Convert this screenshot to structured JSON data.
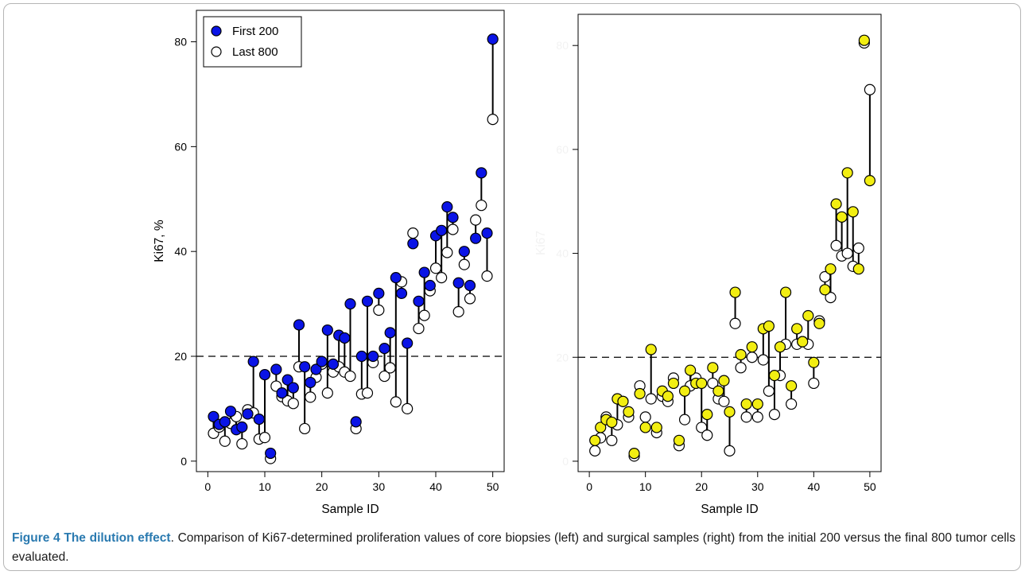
{
  "caption": {
    "figure_label": "Figure 4",
    "title": "The dilution effect",
    "text": ". Comparison of Ki67-determined proliferation values of core biopsies (left) and surgical samples (right) from the initial 200 versus the final 800 tumor cells evaluated."
  },
  "colors": {
    "first200_left": "#0a14e6",
    "first200_right": "#f2ee12",
    "last800": "#ffffff",
    "stroke": "#000000",
    "right_y_ticklabels": "#f2f2f2"
  },
  "chart_data": [
    {
      "type": "scatter",
      "title": "",
      "xlabel": "Sample ID",
      "ylabel": "Ki67, %",
      "xlim": [
        -2,
        52
      ],
      "ylim": [
        -2,
        86
      ],
      "xticks": [
        0,
        10,
        20,
        30,
        40,
        50
      ],
      "yticks": [
        0,
        20,
        40,
        60,
        80
      ],
      "reference_line": 20,
      "legend": "top-left",
      "grid": false,
      "series": [
        {
          "name": "First 200",
          "x": [
            1,
            2,
            3,
            4,
            5,
            6,
            7,
            8,
            9,
            10,
            11,
            12,
            13,
            14,
            15,
            16,
            17,
            18,
            19,
            20,
            21,
            22,
            23,
            24,
            25,
            26,
            27,
            28,
            29,
            30,
            31,
            32,
            33,
            34,
            35,
            36,
            37,
            38,
            39,
            40,
            41,
            42,
            43,
            44,
            45,
            46,
            47,
            48,
            49,
            50
          ],
          "values": [
            8.5,
            7,
            7.5,
            9.5,
            6,
            6.5,
            9,
            19,
            8,
            16.5,
            1.5,
            17.5,
            13,
            15.5,
            14,
            26,
            18,
            15,
            17.5,
            19,
            25,
            18.5,
            24,
            23.5,
            30,
            7.5,
            20,
            30.5,
            20,
            32,
            21.5,
            24.5,
            35,
            32,
            22.5,
            41.5,
            30.5,
            36,
            33.5,
            43,
            44,
            48.5,
            46.5,
            34,
            40,
            33.5,
            42.5,
            55,
            43.5,
            80.5
          ]
        },
        {
          "name": "Last 800",
          "x": [
            1,
            2,
            3,
            4,
            5,
            6,
            7,
            8,
            9,
            10,
            11,
            12,
            13,
            14,
            15,
            16,
            17,
            18,
            19,
            20,
            21,
            22,
            23,
            24,
            25,
            26,
            27,
            28,
            29,
            30,
            31,
            32,
            33,
            34,
            35,
            36,
            37,
            38,
            39,
            40,
            41,
            42,
            43,
            44,
            45,
            46,
            47,
            48,
            49,
            50
          ],
          "values": [
            5.3,
            6.5,
            3.8,
            7.2,
            8.5,
            3.3,
            9.8,
            9.2,
            4.2,
            4.5,
            0.5,
            14.3,
            12.3,
            11.5,
            11,
            18,
            6.2,
            12.2,
            16,
            18.5,
            13,
            17,
            18,
            17,
            16.2,
            6.2,
            12.8,
            13,
            18.8,
            28.8,
            16.2,
            17.8,
            11.3,
            34.2,
            10,
            43.5,
            25.3,
            27.8,
            32.5,
            36.8,
            35,
            39.8,
            44.2,
            28.5,
            37.5,
            31,
            46,
            48.8,
            35.3,
            65.2
          ]
        }
      ]
    },
    {
      "type": "scatter",
      "title": "",
      "xlabel": "Sample ID",
      "ylabel": "Ki67",
      "xlim": [
        -2,
        52
      ],
      "ylim": [
        -2,
        86
      ],
      "xticks": [
        0,
        10,
        20,
        30,
        40,
        50
      ],
      "yticks": [
        0,
        20,
        40,
        60,
        80
      ],
      "reference_line": 20,
      "legend": "none",
      "grid": false,
      "series": [
        {
          "x": [
            1,
            2,
            3,
            4,
            5,
            6,
            7,
            8,
            9,
            10,
            11,
            12,
            13,
            14,
            15,
            16,
            17,
            18,
            19,
            20,
            21,
            22,
            23,
            24,
            25,
            26,
            27,
            28,
            29,
            30,
            31,
            32,
            33,
            34,
            35,
            36,
            37,
            38,
            39,
            40,
            41,
            42,
            43,
            44,
            45,
            46,
            47,
            48,
            49,
            50
          ],
          "values": [
            4,
            6.5,
            8,
            7.5,
            12,
            11.5,
            9.5,
            1.5,
            13,
            6.5,
            21.5,
            6.5,
            13.5,
            12.5,
            15,
            4,
            13.5,
            17.5,
            15,
            15,
            9,
            18,
            13.5,
            15.5,
            9.5,
            32.5,
            20.5,
            11,
            22,
            11,
            25.5,
            26,
            16.5,
            22,
            32.5,
            14.5,
            25.5,
            23,
            28,
            19,
            26.5,
            33,
            37,
            49.5,
            47,
            55.5,
            48,
            37,
            81,
            54
          ]
        },
        {
          "x": [
            1,
            2,
            3,
            4,
            5,
            6,
            7,
            8,
            9,
            10,
            11,
            12,
            13,
            14,
            15,
            16,
            17,
            18,
            19,
            20,
            21,
            22,
            23,
            24,
            25,
            26,
            27,
            28,
            29,
            30,
            31,
            32,
            33,
            34,
            35,
            36,
            37,
            38,
            39,
            40,
            41,
            42,
            43,
            44,
            45,
            46,
            47,
            48,
            49,
            50
          ],
          "values": [
            2,
            4.5,
            8.5,
            4,
            7,
            11.5,
            8.5,
            1,
            14.5,
            8.5,
            12,
            5.5,
            12.5,
            11.5,
            16,
            3,
            8,
            14.5,
            16,
            6.5,
            5,
            15,
            12,
            11.5,
            2,
            26.5,
            18,
            8.5,
            20,
            8.5,
            19.5,
            13.5,
            9,
            16.5,
            22.5,
            11,
            22.5,
            23,
            22.5,
            15,
            27,
            35.5,
            31.5,
            41.5,
            39.5,
            40,
            37.5,
            41,
            80.5,
            71.5
          ]
        }
      ]
    }
  ]
}
